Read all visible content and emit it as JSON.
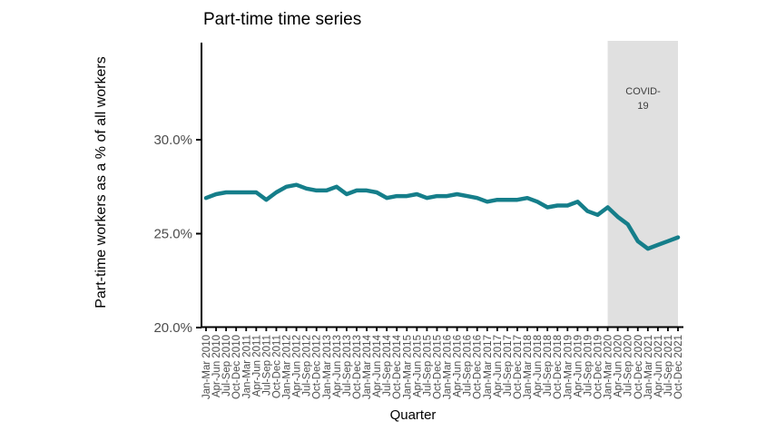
{
  "chart_data": {
    "type": "line",
    "title": "Part-time time series",
    "xlabel": "Quarter",
    "ylabel": "Part-time workers as a % of all workers",
    "categories": [
      "Jan-Mar 2010",
      "Apr-Jun 2010",
      "Jul-Sep 2010",
      "Oct-Dec 2010",
      "Jan-Mar 2011",
      "Apr-Jun 2011",
      "Jul-Sep 2011",
      "Oct-Dec 2011",
      "Jan-Mar 2012",
      "Apr-Jun 2012",
      "Jul-Sep 2012",
      "Oct-Dec 2012",
      "Jan-Mar 2013",
      "Apr-Jun 2013",
      "Jul-Sep 2013",
      "Oct-Dec 2013",
      "Jan-Mar 2014",
      "Apr-Jun 2014",
      "Jul-Sep 2014",
      "Oct-Dec 2014",
      "Jan-Mar 2015",
      "Apr-Jun 2015",
      "Jul-Sep 2015",
      "Oct-Dec 2015",
      "Jan-Mar 2016",
      "Apr-Jun 2016",
      "Jul-Sep 2016",
      "Oct-Dec 2016",
      "Jan-Mar 2017",
      "Apr-Jun 2017",
      "Jul-Sep 2017",
      "Oct-Dec 2017",
      "Jan-Mar 2018",
      "Apr-Jun 2018",
      "Jul-Sep 2018",
      "Oct-Dec 2018",
      "Jan-Mar 2019",
      "Apr-Jun 2019",
      "Jul-Sep 2019",
      "Oct-Dec 2019",
      "Jan-Mar 2020",
      "Apr-Jun 2020",
      "Jul-Sep 2020",
      "Oct-Dec 2020",
      "Jan-Mar 2021",
      "Apr-Jun 2021",
      "Jul-Sep 2021",
      "Oct-Dec 2021"
    ],
    "values": [
      26.9,
      27.1,
      27.2,
      27.2,
      27.2,
      27.2,
      26.8,
      27.2,
      27.5,
      27.6,
      27.4,
      27.3,
      27.3,
      27.5,
      27.1,
      27.3,
      27.3,
      27.2,
      26.9,
      27.0,
      27.0,
      27.1,
      26.9,
      27.0,
      27.0,
      27.1,
      27.0,
      26.9,
      26.7,
      26.8,
      26.8,
      26.8,
      26.9,
      26.7,
      26.4,
      26.5,
      26.5,
      26.7,
      26.2,
      26.0,
      26.4,
      25.9,
      25.5,
      24.6,
      24.2,
      24.4,
      24.6,
      24.8
    ],
    "ylim": [
      20,
      35.2
    ],
    "yticks": [
      {
        "value": 20,
        "label": "20.0%"
      },
      {
        "value": 25,
        "label": "25.0%"
      },
      {
        "value": 30,
        "label": "30.0%"
      }
    ],
    "line_color": "#157e8a",
    "grid": false,
    "legend": "none",
    "annotation": {
      "label": "COVID-19",
      "label_lines": [
        "COVID-",
        "19"
      ],
      "start_category": "Jan-Mar 2020",
      "end_category": "Oct-Dec 2021",
      "band_color": "#e0e0e0"
    }
  },
  "colors": {
    "axis": "#000000",
    "tick_label": "#4d4d4d",
    "background": "#ffffff"
  }
}
